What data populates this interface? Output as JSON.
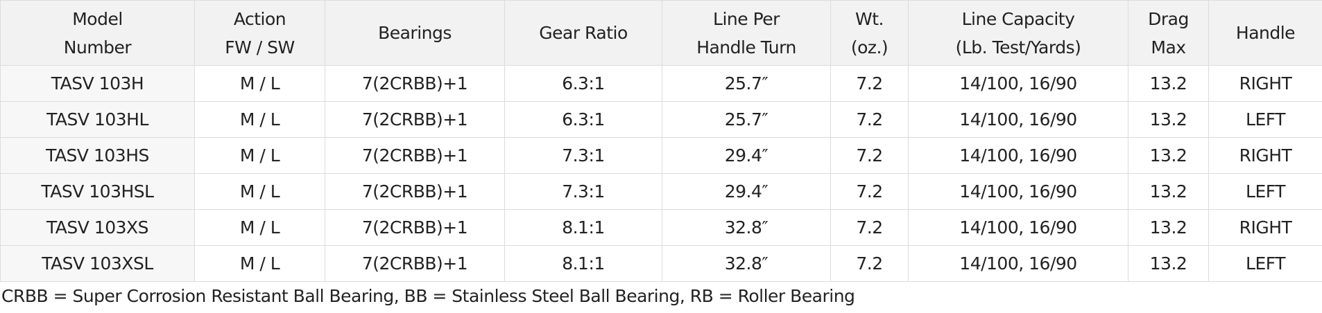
{
  "table": {
    "header": [
      [
        "Model",
        "Number"
      ],
      [
        "Action",
        "FW / SW"
      ],
      [
        "Bearings"
      ],
      [
        "Gear Ratio"
      ],
      [
        "Line Per",
        "Handle Turn"
      ],
      [
        "Wt.",
        "(oz.)"
      ],
      [
        "Line Capacity",
        "(Lb. Test/Yards)"
      ],
      [
        "Drag",
        "Max"
      ],
      [
        "Handle"
      ]
    ],
    "rows": [
      [
        "TASV 103H",
        "M / L",
        "7(2CRBB)+1",
        "6.3:1",
        "25.7″",
        "7.2",
        "14/100, 16/90",
        "13.2",
        "RIGHT"
      ],
      [
        "TASV 103HL",
        "M / L",
        "7(2CRBB)+1",
        "6.3:1",
        "25.7″",
        "7.2",
        "14/100, 16/90",
        "13.2",
        "LEFT"
      ],
      [
        "TASV 103HS",
        "M / L",
        "7(2CRBB)+1",
        "7.3:1",
        "29.4″",
        "7.2",
        "14/100, 16/90",
        "13.2",
        "RIGHT"
      ],
      [
        "TASV 103HSL",
        "M / L",
        "7(2CRBB)+1",
        "7.3:1",
        "29.4″",
        "7.2",
        "14/100, 16/90",
        "13.2",
        "LEFT"
      ],
      [
        "TASV 103XS",
        "M / L",
        "7(2CRBB)+1",
        "8.1:1",
        "32.8″",
        "7.2",
        "14/100, 16/90",
        "13.2",
        "RIGHT"
      ],
      [
        "TASV 103XSL",
        "M / L",
        "7(2CRBB)+1",
        "8.1:1",
        "32.8″",
        "7.2",
        "14/100, 16/90",
        "13.2",
        "LEFT"
      ]
    ],
    "footnote": "CRBB = Super Corrosion Resistant Ball Bearing, BB = Stainless Steel Ball Bearing, RB = Roller Bearing"
  }
}
